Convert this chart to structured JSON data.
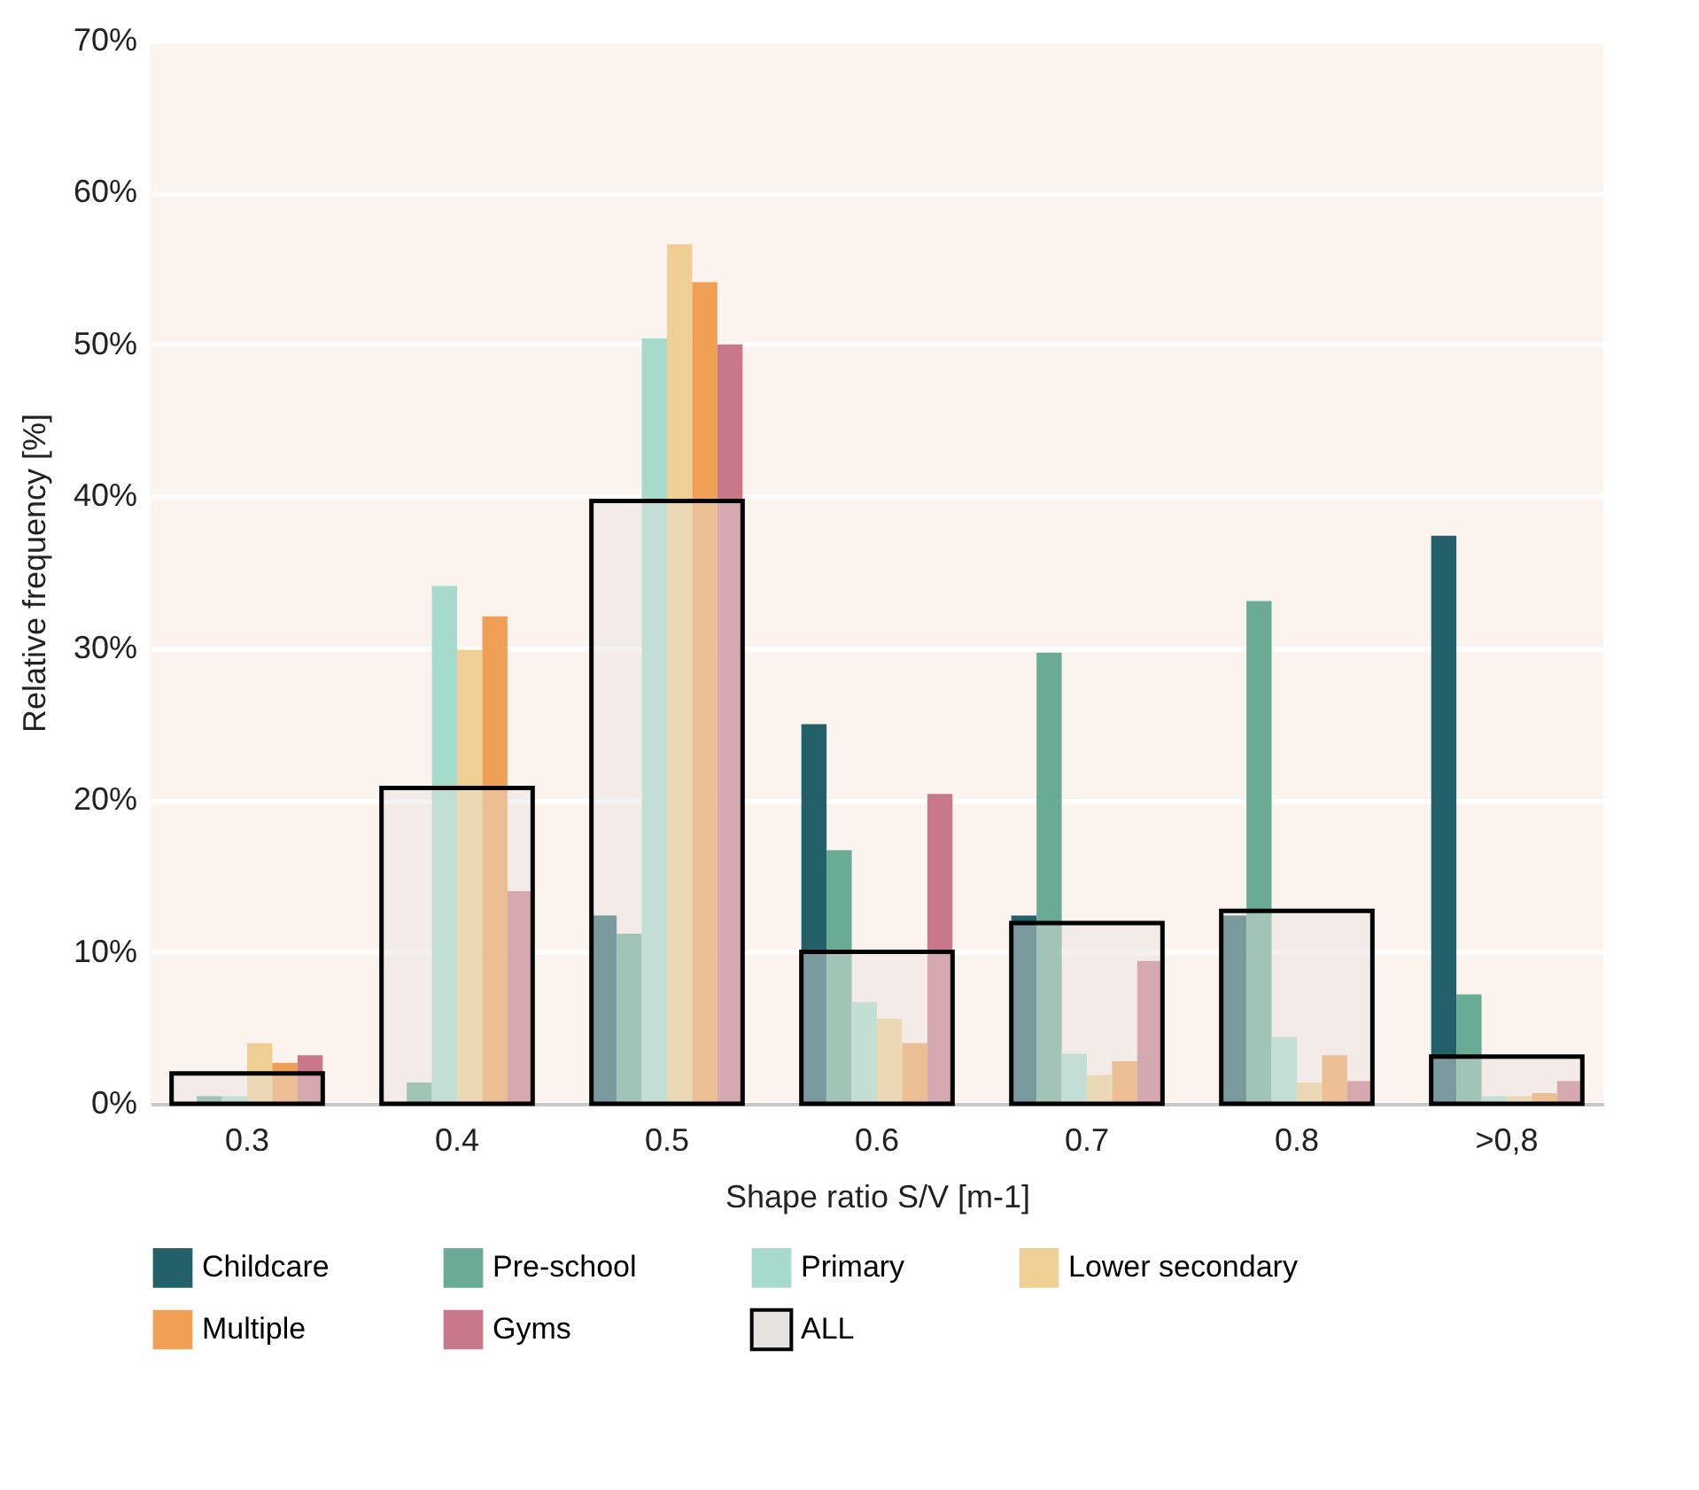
{
  "chart_data": {
    "type": "bar",
    "xlabel": "Shape ratio S/V [m-1]",
    "ylabel": "Relative frequency [%]",
    "categories": [
      "0.3",
      "0.4",
      "0.5",
      "0.6",
      "0.7",
      "0.8",
      ">0,8"
    ],
    "series": [
      {
        "name": "Childcare",
        "color": "#23606a",
        "values": [
          0,
          0,
          12.4,
          25,
          12.4,
          12.4,
          37.4
        ]
      },
      {
        "name": "Pre-school",
        "color": "#6aab96",
        "values": [
          0.5,
          1.4,
          11.2,
          16.7,
          29.7,
          33.1,
          7.2
        ]
      },
      {
        "name": "Primary",
        "color": "#a6dacb",
        "values": [
          0.5,
          34.1,
          50.4,
          6.7,
          3.3,
          4.4,
          0.5
        ]
      },
      {
        "name": "Lower secondary",
        "color": "#efcf93",
        "values": [
          4,
          29.9,
          56.6,
          5.6,
          1.9,
          1.4,
          0.5
        ]
      },
      {
        "name": "Multiple",
        "color": "#f0a055",
        "values": [
          2.7,
          32.1,
          54.1,
          4,
          2.8,
          3.2,
          0.7
        ]
      },
      {
        "name": "Gyms",
        "color": "#c97889",
        "values": [
          3.2,
          14,
          50,
          20.4,
          9.4,
          1.5,
          1.5
        ]
      },
      {
        "name": "ALL",
        "color": "#e6e2df",
        "values": [
          2,
          20.8,
          39.7,
          10,
          11.9,
          12.7,
          3.1
        ]
      }
    ],
    "ylim": [
      0,
      70
    ],
    "yticks": [
      {
        "value": 0,
        "label": "0%"
      },
      {
        "value": 10,
        "label": "10%"
      },
      {
        "value": 20,
        "label": "20%"
      },
      {
        "value": 30,
        "label": "30%"
      },
      {
        "value": 40,
        "label": "40%"
      },
      {
        "value": 50,
        "label": "50%"
      },
      {
        "value": 60,
        "label": "60%"
      },
      {
        "value": 70,
        "label": "70%"
      }
    ],
    "grid": "y",
    "legend": "bottom"
  }
}
